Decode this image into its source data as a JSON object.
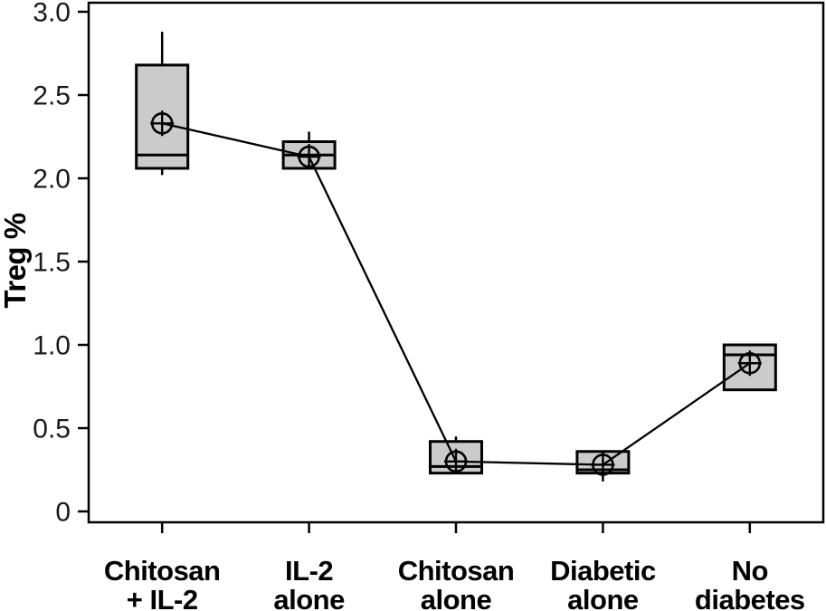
{
  "chart_data": {
    "type": "box",
    "title": "",
    "xlabel": "",
    "ylabel": "Treg %",
    "ylim": [
      0,
      3.05
    ],
    "grid": false,
    "legend": "none",
    "frame": "full-box",
    "mean_markers_connected_by_line": true,
    "mean_marker_style": "circle-plus",
    "yticks": [
      {
        "value": 0.0,
        "label": "0"
      },
      {
        "value": 0.5,
        "label": "0.5"
      },
      {
        "value": 1.0,
        "label": "1.0"
      },
      {
        "value": 1.5,
        "label": "1.5"
      },
      {
        "value": 2.0,
        "label": "2.0"
      },
      {
        "value": 2.5,
        "label": "2.5"
      },
      {
        "value": 3.0,
        "label": "3.0"
      }
    ],
    "groups": [
      {
        "label": "Chitosan + IL-2",
        "label_lines": [
          "Chitosan",
          "+ IL-2"
        ],
        "whisker_low": 2.02,
        "q1": 2.06,
        "median": 2.14,
        "q3": 2.68,
        "whisker_high": 2.88,
        "mean": 2.33
      },
      {
        "label": "IL-2 alone",
        "label_lines": [
          "IL-2",
          "alone"
        ],
        "whisker_low": 2.06,
        "q1": 2.06,
        "median": 2.14,
        "q3": 2.22,
        "whisker_high": 2.28,
        "mean": 2.13
      },
      {
        "label": "Chitosan alone",
        "label_lines": [
          "Chitosan",
          "alone"
        ],
        "whisker_low": 0.23,
        "q1": 0.23,
        "median": 0.27,
        "q3": 0.42,
        "whisker_high": 0.45,
        "mean": 0.3
      },
      {
        "label": "Diabetic alone",
        "label_lines": [
          "Diabetic",
          "alone"
        ],
        "whisker_low": 0.18,
        "q1": 0.23,
        "median": 0.25,
        "q3": 0.36,
        "whisker_high": 0.36,
        "mean": 0.28
      },
      {
        "label": "No diabetes",
        "label_lines": [
          "No",
          "diabetes"
        ],
        "whisker_low": 0.73,
        "q1": 0.73,
        "median": 0.94,
        "q3": 1.0,
        "whisker_high": 1.0,
        "mean": 0.89
      }
    ],
    "colors": {
      "box_fill": "#cbcbcb",
      "stroke": "#000000",
      "background": "#ffffff",
      "tick_text": "#1a1a1a"
    }
  }
}
